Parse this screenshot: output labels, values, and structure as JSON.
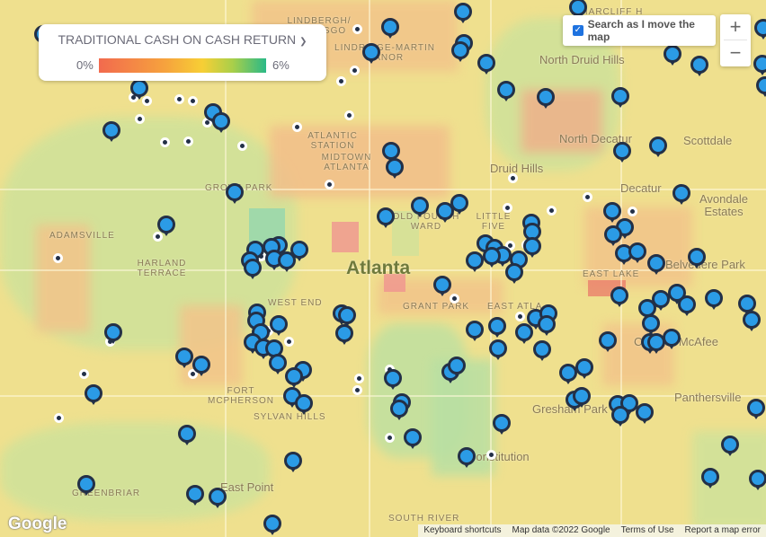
{
  "legend": {
    "title": "TRADITIONAL CASH ON CASH RETURN",
    "chevron_icon": "chevron-down-icon",
    "min_label": "0%",
    "max_label": "6%",
    "gradient_colors": [
      "#f26a4e",
      "#f6a33d",
      "#f7cf35",
      "#a9cf4a",
      "#2ab987"
    ]
  },
  "search_toggle": {
    "label": "Search as I move the map",
    "checked": true
  },
  "zoom_controls": {
    "zoom_in": "+",
    "zoom_out": "−"
  },
  "map_labels": [
    "Lindbergh/ Morosgo",
    "Lindridge-Martin Manor",
    "Briarcliff H",
    "North Druid Hills",
    "Atlantic Station",
    "Midtown Atlanta",
    "North Decatur",
    "Druid Hills",
    "Scottdale",
    "Decatur",
    "Avondale Estates",
    "Grove Park",
    "Adamsville",
    "Harland Terrace",
    "Old Fourth Ward",
    "Little Five",
    "Atlanta",
    "West End",
    "Grant Park",
    "East Atla",
    "East Lake",
    "Belvedere Park",
    "Candler-McAfee",
    "Fort McPherson",
    "Sylvan Hills",
    "Gresham Park",
    "Panthersville",
    "Constitution",
    "Greenbriar",
    "East Point",
    "South River"
  ],
  "markers": {
    "pin_icon": "map-pin-icon",
    "dot_icon": "small-dot-icon",
    "pin_color": "#2b9be6",
    "pin_border": "#233047"
  },
  "logo": "Google",
  "attribution": [
    "Keyboard shortcuts",
    "Map data ©2022 Google",
    "Terms of Use",
    "Report a map error"
  ]
}
